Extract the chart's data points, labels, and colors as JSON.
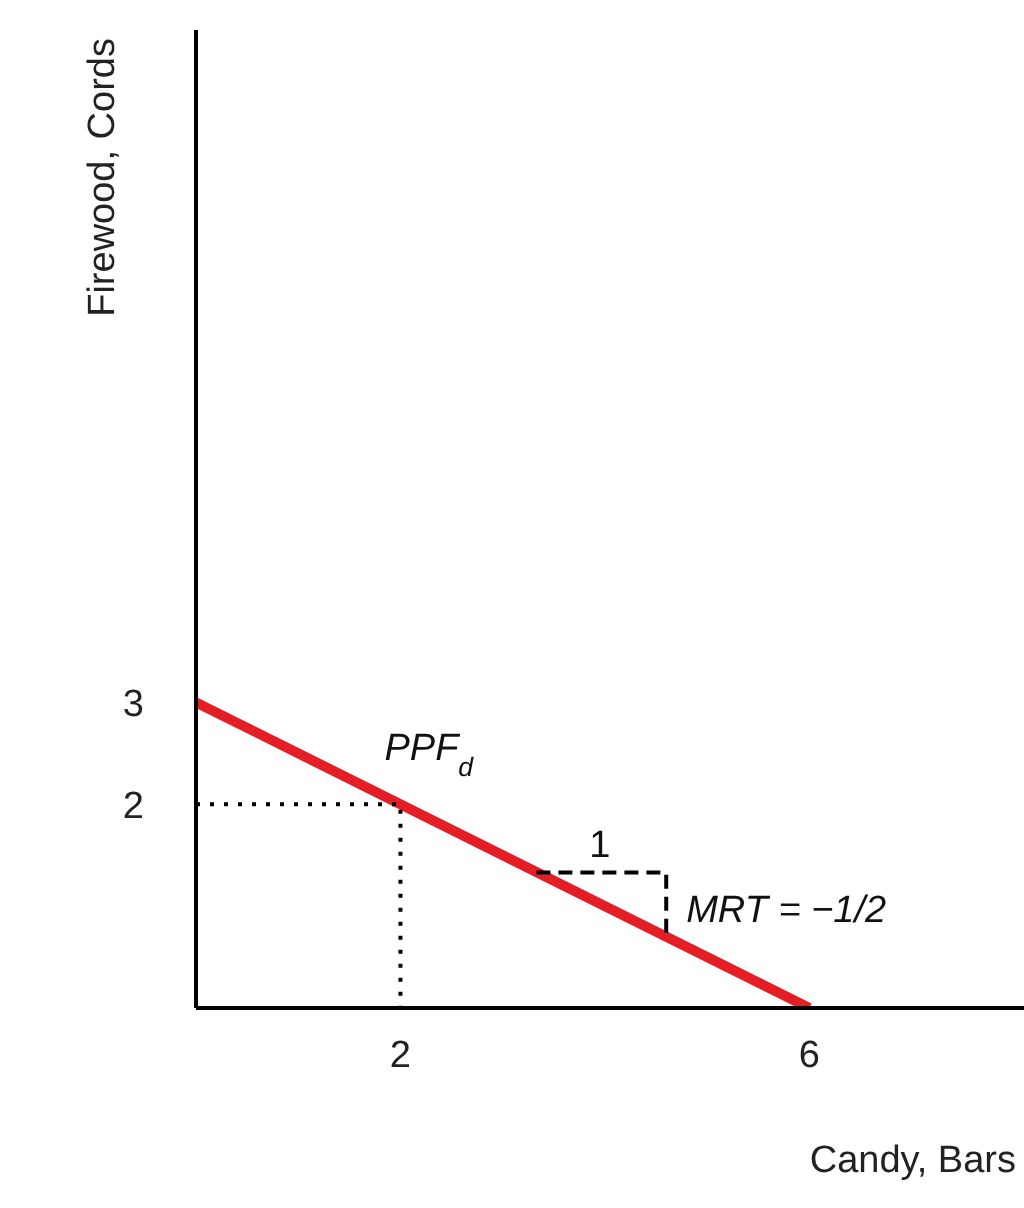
{
  "chart_data": {
    "type": "line",
    "xlabel": "Candy, Bars",
    "ylabel": "Firewood, Cords",
    "xlim": [
      0,
      8.1
    ],
    "ylim": [
      0,
      9.6
    ],
    "xticks": [
      2,
      6
    ],
    "yticks": [
      2,
      3
    ],
    "marker": "none",
    "series": [
      {
        "color": "#e31e24",
        "x": [
          0,
          6
        ],
        "values": [
          3,
          0
        ],
        "line_style": "solid"
      },
      {
        "color": "#000000",
        "x": [
          0,
          2,
          2
        ],
        "values": [
          2,
          2,
          0
        ],
        "line_style": "dotted"
      },
      {
        "color": "#000000",
        "x": [
          3.33,
          4.6,
          4.6
        ],
        "values": [
          1.33,
          1.33,
          0.7
        ],
        "line_style": "dashed"
      }
    ],
    "annotations": [
      {
        "text": "PPF$_{d}$",
        "x": 2,
        "y": 2
      },
      {
        "text": "1",
        "x": 3.95,
        "y": 1.33
      },
      {
        "text": "MRT = −1/2",
        "x": 4.6,
        "y": 1.0
      }
    ]
  }
}
